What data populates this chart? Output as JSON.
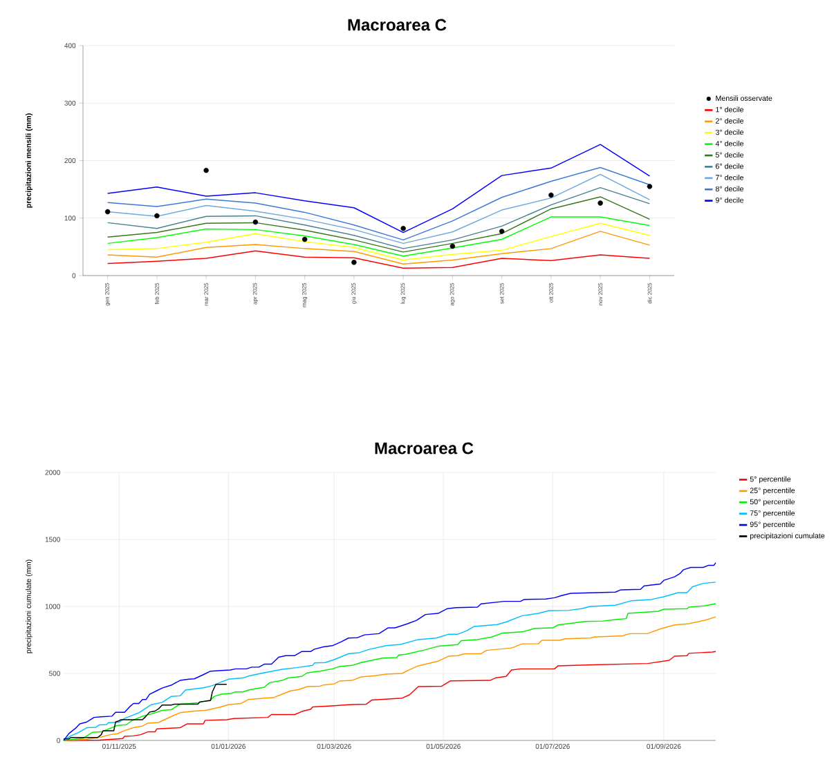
{
  "chart_data": [
    {
      "type": "line",
      "title": "Macroarea C",
      "ylabel": "precipitazioni mensili (mm)",
      "categories": [
        "gen 2025",
        "feb 2025",
        "mar 2025",
        "apr 2025",
        "mag 2025",
        "giu 2025",
        "lug 2025",
        "ago 2025",
        "set 2025",
        "ott 2025",
        "nov 2025",
        "dic 2025"
      ],
      "ylim": [
        0,
        400
      ],
      "yticks": [
        0,
        100,
        200,
        300,
        400
      ],
      "grid": "y",
      "legend": "right",
      "series": [
        {
          "name": "Mensili osservate",
          "type": "scatter",
          "color": "#000000",
          "values": [
            111,
            104,
            183,
            93,
            63,
            23,
            82,
            51,
            77,
            140,
            126,
            155
          ]
        },
        {
          "name": "1° decile",
          "color": "#ff0000",
          "values": [
            21,
            25,
            30,
            43,
            32,
            31,
            13,
            14,
            30,
            26,
            36,
            30
          ]
        },
        {
          "name": "2° decile",
          "color": "#ff9900",
          "values": [
            36,
            32,
            49,
            54,
            47,
            42,
            20,
            27,
            38,
            47,
            77,
            53
          ]
        },
        {
          "name": "3° decile",
          "color": "#ffff00",
          "values": [
            45,
            47,
            58,
            73,
            59,
            49,
            27,
            37,
            44,
            68,
            91,
            70
          ]
        },
        {
          "name": "4° decile",
          "color": "#00ff00",
          "values": [
            56,
            66,
            81,
            80,
            69,
            54,
            34,
            48,
            63,
            102,
            102,
            87
          ]
        },
        {
          "name": "5° decile",
          "color": "#38761d",
          "values": [
            67,
            75,
            91,
            92,
            79,
            62,
            41,
            56,
            73,
            116,
            137,
            98
          ]
        },
        {
          "name": "6° decile",
          "color": "#45818e",
          "values": [
            92,
            82,
            103,
            104,
            88,
            70,
            47,
            62,
            86,
            123,
            153,
            125
          ]
        },
        {
          "name": "7° decile",
          "color": "#6fa8dc",
          "values": [
            111,
            103,
            122,
            112,
            98,
            80,
            56,
            76,
            114,
            135,
            176,
            132
          ]
        },
        {
          "name": "8° decile",
          "color": "#3c78d8",
          "values": [
            127,
            120,
            133,
            126,
            110,
            88,
            62,
            95,
            136,
            164,
            188,
            158
          ]
        },
        {
          "name": "9° decile",
          "color": "#0000ff",
          "values": [
            143,
            154,
            138,
            144,
            130,
            118,
            75,
            116,
            174,
            187,
            228,
            173
          ]
        }
      ]
    },
    {
      "type": "line",
      "title": "Macroarea C",
      "ylabel": "precipitazioni cumulate (mm)",
      "xlim": [
        "2025-10-01",
        "2026-09-30"
      ],
      "xticks": [
        {
          "value": "2025-11-01",
          "label": "01/11/2025"
        },
        {
          "value": "2026-01-01",
          "label": "01/01/2026"
        },
        {
          "value": "2026-03-01",
          "label": "01/03/2026"
        },
        {
          "value": "2026-05-01",
          "label": "01/05/2026"
        },
        {
          "value": "2026-07-01",
          "label": "01/07/2026"
        },
        {
          "value": "2026-09-01",
          "label": "01/09/2026"
        }
      ],
      "ylim": [
        0,
        2000
      ],
      "yticks": [
        0,
        500,
        1000,
        1500,
        2000
      ],
      "grid": true,
      "legend": "top right",
      "series": [
        {
          "name": "5° percentile",
          "color": "#ff0000",
          "x": [
            "2025-10-01",
            "2025-10-21",
            "2025-11-03",
            "2025-11-04",
            "2025-11-09",
            "2025-11-13",
            "2025-11-17",
            "2025-11-21",
            "2025-11-22",
            "2025-12-05",
            "2025-12-09",
            "2025-12-18",
            "2025-12-19",
            "2025-12-31",
            "2026-01-04",
            "2026-01-23",
            "2026-01-25",
            "2026-02-07",
            "2026-02-11",
            "2026-02-16",
            "2026-02-17",
            "2026-03-01",
            "2026-03-09",
            "2026-03-19",
            "2026-03-22",
            "2026-04-08",
            "2026-04-12",
            "2026-04-17",
            "2026-04-30",
            "2026-05-05",
            "2026-05-27",
            "2026-05-30",
            "2026-06-05",
            "2026-06-08",
            "2026-06-13",
            "2026-07-02",
            "2026-07-04",
            "2026-07-23",
            "2026-08-23",
            "2026-09-04",
            "2026-09-07",
            "2026-09-14",
            "2026-09-15",
            "2026-09-28",
            "2026-09-30"
          ],
          "values": [
            0,
            3,
            14,
            31,
            34,
            43,
            64,
            64,
            86,
            95,
            124,
            124,
            150,
            155,
            164,
            172,
            193,
            193,
            216,
            233,
            250,
            259,
            267,
            271,
            302,
            316,
            340,
            402,
            405,
            445,
            448,
            466,
            478,
            526,
            534,
            534,
            557,
            564,
            574,
            598,
            629,
            633,
            650,
            660,
            664
          ]
        },
        {
          "name": "25° percentile",
          "color": "#ff9900",
          "x": [
            "2025-10-01",
            "2025-10-14",
            "2025-10-22",
            "2025-10-27",
            "2025-10-31",
            "2025-11-04",
            "2025-11-09",
            "2025-11-14",
            "2025-11-17",
            "2025-11-23",
            "2025-12-01",
            "2025-12-05",
            "2025-12-13",
            "2025-12-19",
            "2025-12-27",
            "2026-01-01",
            "2026-01-08",
            "2026-01-12",
            "2026-01-21",
            "2026-01-26",
            "2026-01-31",
            "2026-02-05",
            "2026-02-09",
            "2026-02-14",
            "2026-02-21",
            "2026-02-23",
            "2026-03-01",
            "2026-03-04",
            "2026-03-11",
            "2026-03-16",
            "2026-03-24",
            "2026-03-30",
            "2026-04-08",
            "2026-04-11",
            "2026-04-17",
            "2026-04-28",
            "2026-05-04",
            "2026-05-09",
            "2026-05-13",
            "2026-05-22",
            "2026-05-25",
            "2026-06-08",
            "2026-06-14",
            "2026-06-23",
            "2026-06-25",
            "2026-07-05",
            "2026-07-08",
            "2026-07-22",
            "2026-07-24",
            "2026-08-09",
            "2026-08-13",
            "2026-08-23",
            "2026-08-31",
            "2026-09-07",
            "2026-09-15",
            "2026-09-24",
            "2026-09-30"
          ],
          "values": [
            0,
            9,
            26,
            43,
            50,
            74,
            95,
            107,
            129,
            134,
            184,
            207,
            219,
            224,
            247,
            267,
            276,
            305,
            316,
            319,
            345,
            371,
            379,
            402,
            405,
            414,
            422,
            443,
            448,
            474,
            483,
            495,
            500,
            521,
            557,
            591,
            629,
            633,
            647,
            647,
            672,
            690,
            721,
            721,
            747,
            747,
            759,
            764,
            772,
            781,
            797,
            798,
            836,
            862,
            871,
            897,
            922
          ]
        },
        {
          "name": "50° percentile",
          "color": "#00ee00",
          "x": [
            "2025-10-01",
            "2025-10-07",
            "2025-10-12",
            "2025-10-17",
            "2025-10-22",
            "2025-10-27",
            "2025-10-31",
            "2025-11-05",
            "2025-11-08",
            "2025-11-14",
            "2025-11-19",
            "2025-11-25",
            "2025-11-30",
            "2025-12-05",
            "2025-12-15",
            "2025-12-22",
            "2025-12-24",
            "2025-12-28",
            "2026-01-02",
            "2026-01-05",
            "2026-01-09",
            "2026-01-13",
            "2026-01-21",
            "2026-01-24",
            "2026-01-31",
            "2026-02-03",
            "2026-02-11",
            "2026-02-14",
            "2026-02-21",
            "2026-02-28",
            "2026-03-04",
            "2026-03-11",
            "2026-03-16",
            "2026-03-28",
            "2026-04-05",
            "2026-04-06",
            "2026-04-10",
            "2026-04-21",
            "2026-04-28",
            "2026-05-09",
            "2026-05-11",
            "2026-05-20",
            "2026-05-28",
            "2026-06-03",
            "2026-06-14",
            "2026-06-21",
            "2026-07-01",
            "2026-07-04",
            "2026-07-14",
            "2026-07-19",
            "2026-07-29",
            "2026-08-05",
            "2026-08-11",
            "2026-08-12",
            "2026-08-29",
            "2026-09-01",
            "2026-09-14",
            "2026-09-15",
            "2026-09-24",
            "2026-09-30"
          ],
          "values": [
            0,
            9,
            17,
            60,
            64,
            91,
            112,
            117,
            147,
            181,
            198,
            224,
            229,
            271,
            281,
            302,
            328,
            345,
            350,
            362,
            362,
            379,
            397,
            431,
            448,
            465,
            478,
            505,
            517,
            534,
            552,
            560,
            581,
            615,
            619,
            638,
            643,
            677,
            703,
            715,
            745,
            753,
            772,
            802,
            810,
            836,
            840,
            862,
            879,
            888,
            891,
            902,
            909,
            948,
            964,
            979,
            983,
            995,
            1005,
            1021
          ]
        },
        {
          "name": "75° percentile",
          "color": "#00bfff",
          "x": [
            "2025-10-01",
            "2025-10-05",
            "2025-10-09",
            "2025-10-14",
            "2025-10-19",
            "2025-10-21",
            "2025-10-25",
            "2025-10-26",
            "2025-11-01",
            "2025-11-04",
            "2025-11-12",
            "2025-11-19",
            "2025-11-25",
            "2025-11-30",
            "2025-12-05",
            "2025-12-08",
            "2025-12-18",
            "2025-12-23",
            "2025-12-27",
            "2026-01-01",
            "2026-01-09",
            "2026-01-13",
            "2026-01-21",
            "2026-01-31",
            "2026-02-08",
            "2026-02-17",
            "2026-02-18",
            "2026-02-24",
            "2026-03-01",
            "2026-03-09",
            "2026-03-15",
            "2026-03-21",
            "2026-03-30",
            "2026-04-07",
            "2026-04-17",
            "2026-04-27",
            "2026-05-04",
            "2026-05-09",
            "2026-05-14",
            "2026-05-18",
            "2026-05-31",
            "2026-06-05",
            "2026-06-14",
            "2026-06-23",
            "2026-06-29",
            "2026-07-10",
            "2026-07-17",
            "2026-07-22",
            "2026-08-05",
            "2026-08-14",
            "2026-08-25",
            "2026-09-01",
            "2026-09-09",
            "2026-09-14",
            "2026-09-17",
            "2026-09-23",
            "2026-09-30"
          ],
          "values": [
            0,
            34,
            57,
            95,
            98,
            116,
            119,
            133,
            136,
            164,
            207,
            267,
            284,
            328,
            333,
            376,
            393,
            409,
            431,
            457,
            466,
            483,
            505,
            531,
            543,
            560,
            578,
            581,
            603,
            647,
            655,
            681,
            707,
            716,
            753,
            764,
            793,
            793,
            819,
            850,
            865,
            884,
            931,
            948,
            969,
            971,
            983,
            1000,
            1009,
            1043,
            1052,
            1072,
            1103,
            1103,
            1147,
            1172,
            1181
          ]
        },
        {
          "name": "95° percentile",
          "color": "#0000ff",
          "x": [
            "2025-10-01",
            "2025-10-04",
            "2025-10-08",
            "2025-10-10",
            "2025-10-14",
            "2025-10-18",
            "2025-10-22",
            "2025-10-28",
            "2025-10-30",
            "2025-11-04",
            "2025-11-07",
            "2025-11-09",
            "2025-11-12",
            "2025-11-14",
            "2025-11-16",
            "2025-11-18",
            "2025-11-22",
            "2025-11-25",
            "2025-11-30",
            "2025-12-05",
            "2025-12-10",
            "2025-12-13",
            "2025-12-18",
            "2025-12-22",
            "2025-12-28",
            "2026-01-02",
            "2026-01-05",
            "2026-01-11",
            "2026-01-14",
            "2026-01-18",
            "2026-01-21",
            "2026-01-25",
            "2026-01-29",
            "2026-02-02",
            "2026-02-07",
            "2026-02-11",
            "2026-02-16",
            "2026-02-18",
            "2026-02-23",
            "2026-02-28",
            "2026-03-05",
            "2026-03-09",
            "2026-03-14",
            "2026-03-18",
            "2026-03-26",
            "2026-03-31",
            "2026-04-04",
            "2026-04-11",
            "2026-04-16",
            "2026-04-21",
            "2026-04-28",
            "2026-05-03",
            "2026-05-08",
            "2026-05-20",
            "2026-05-22",
            "2026-06-04",
            "2026-06-13",
            "2026-06-15",
            "2026-06-27",
            "2026-07-02",
            "2026-07-06",
            "2026-07-11",
            "2026-08-05",
            "2026-08-08",
            "2026-08-19",
            "2026-08-21",
            "2026-08-30",
            "2026-09-01",
            "2026-09-07",
            "2026-09-10",
            "2026-09-12",
            "2026-09-16",
            "2026-09-23",
            "2026-09-26",
            "2026-09-29",
            "2026-09-30"
          ],
          "values": [
            0,
            52,
            95,
            124,
            138,
            172,
            176,
            181,
            210,
            210,
            253,
            276,
            276,
            305,
            305,
            345,
            371,
            391,
            412,
            448,
            457,
            460,
            491,
            517,
            522,
            526,
            534,
            534,
            547,
            547,
            569,
            569,
            621,
            633,
            633,
            664,
            664,
            681,
            698,
            707,
            736,
            764,
            767,
            788,
            797,
            840,
            840,
            871,
            896,
            940,
            948,
            983,
            991,
            995,
            1019,
            1038,
            1038,
            1052,
            1055,
            1065,
            1081,
            1098,
            1107,
            1124,
            1127,
            1153,
            1167,
            1195,
            1221,
            1245,
            1274,
            1291,
            1291,
            1307,
            1307,
            1327
          ]
        },
        {
          "name": "precipitazioni cumulate",
          "color": "#000000",
          "x": [
            "2025-10-01",
            "2025-10-04",
            "2025-10-05",
            "2025-10-20",
            "2025-10-22",
            "2025-10-23",
            "2025-10-29",
            "2025-10-30",
            "2025-11-01",
            "2025-11-02",
            "2025-11-14",
            "2025-11-16",
            "2025-11-18",
            "2025-11-21",
            "2025-11-23",
            "2025-11-25",
            "2025-11-30",
            "2025-12-02",
            "2025-12-15",
            "2025-12-16",
            "2025-12-22",
            "2025-12-23",
            "2025-12-25",
            "2025-12-31"
          ],
          "values": [
            12,
            12,
            22,
            22,
            43,
            72,
            72,
            138,
            147,
            155,
            155,
            181,
            212,
            219,
            236,
            264,
            264,
            271,
            271,
            288,
            298,
            362,
            419,
            419
          ]
        }
      ]
    }
  ]
}
